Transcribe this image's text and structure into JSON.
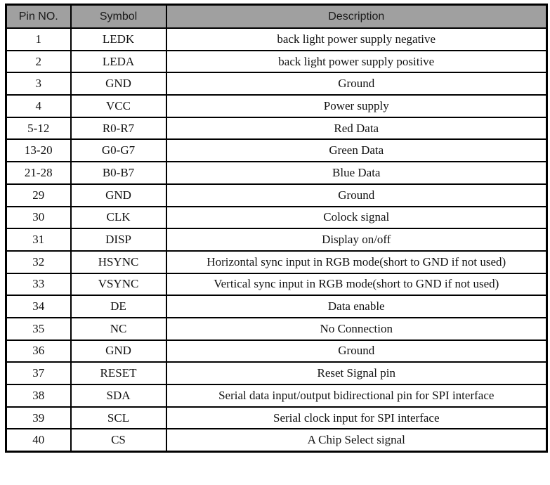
{
  "table": {
    "headers": [
      "Pin NO.",
      "Symbol",
      "Description"
    ],
    "rows": [
      {
        "pin": "1",
        "symbol": "LEDK",
        "description": "back light power supply negative"
      },
      {
        "pin": "2",
        "symbol": "LEDA",
        "description": "back light power supply positive"
      },
      {
        "pin": "3",
        "symbol": "GND",
        "description": "Ground"
      },
      {
        "pin": "4",
        "symbol": "VCC",
        "description": "Power supply"
      },
      {
        "pin": "5-12",
        "symbol": "R0-R7",
        "description": "Red Data"
      },
      {
        "pin": "13-20",
        "symbol": "G0-G7",
        "description": "Green Data"
      },
      {
        "pin": "21-28",
        "symbol": "B0-B7",
        "description": "Blue Data"
      },
      {
        "pin": "29",
        "symbol": "GND",
        "description": "Ground"
      },
      {
        "pin": "30",
        "symbol": "CLK",
        "description": "Colock signal"
      },
      {
        "pin": "31",
        "symbol": "DISP",
        "description": "Display on/off"
      },
      {
        "pin": "32",
        "symbol": "HSYNC",
        "description": "Horizontal sync input in RGB mode(short to GND if not used)"
      },
      {
        "pin": "33",
        "symbol": "VSYNC",
        "description": "Vertical sync input in RGB mode(short to GND if not used)"
      },
      {
        "pin": "34",
        "symbol": "DE",
        "description": "Data enable"
      },
      {
        "pin": "35",
        "symbol": "NC",
        "description": "No Connection"
      },
      {
        "pin": "36",
        "symbol": "GND",
        "description": "Ground"
      },
      {
        "pin": "37",
        "symbol": "RESET",
        "description": "Reset Signal pin"
      },
      {
        "pin": "38",
        "symbol": "SDA",
        "description": "Serial data input/output bidirectional pin for SPI interface"
      },
      {
        "pin": "39",
        "symbol": "SCL",
        "description": "Serial clock input for SPI interface"
      },
      {
        "pin": "40",
        "symbol": "CS",
        "description": "A Chip Select signal"
      }
    ],
    "colors": {
      "header_background": "#a0a0a0",
      "border": "#000000",
      "text": "#111111"
    }
  }
}
